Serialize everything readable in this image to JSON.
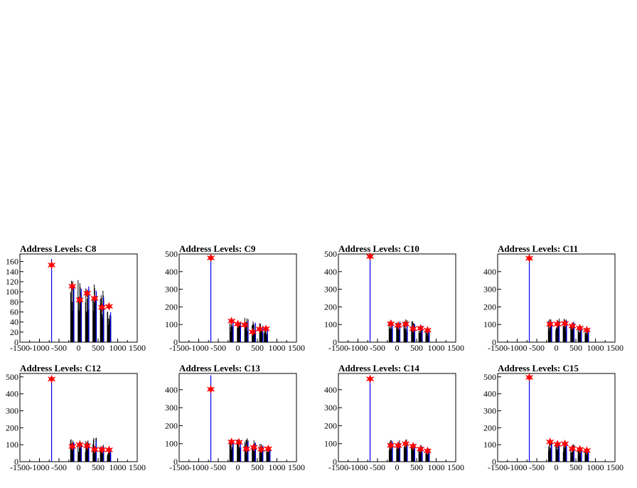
{
  "chart_data": [
    {
      "type": "histogram",
      "title": "Address Levels: C8",
      "xlim": [
        -1500,
        1500
      ],
      "ylim": [
        0,
        175
      ],
      "xticks": [
        -1500,
        -1000,
        -500,
        0,
        500,
        1000,
        1500
      ],
      "yticks": [
        0,
        20,
        40,
        60,
        80,
        100,
        120,
        140,
        160
      ],
      "main_spike": {
        "x": -690,
        "height": 165
      },
      "groups": [
        {
          "x": -160,
          "height": 130
        },
        {
          "x": 30,
          "height": 125
        },
        {
          "x": 220,
          "height": 130
        },
        {
          "x": 410,
          "height": 120
        },
        {
          "x": 600,
          "height": 105
        },
        {
          "x": 780,
          "height": 70
        }
      ],
      "markers": [
        {
          "x": -690,
          "y": 153
        },
        {
          "x": -160,
          "y": 111
        },
        {
          "x": 30,
          "y": 84
        },
        {
          "x": 220,
          "y": 97
        },
        {
          "x": 410,
          "y": 87
        },
        {
          "x": 600,
          "y": 69
        },
        {
          "x": 780,
          "y": 71
        }
      ]
    },
    {
      "type": "histogram",
      "title": "Address Levels: C9",
      "xlim": [
        -1500,
        1500
      ],
      "ylim": [
        0,
        500
      ],
      "xticks": [
        -1500,
        -1000,
        -500,
        0,
        500,
        1000,
        1500
      ],
      "yticks": [
        0,
        100,
        200,
        300,
        400,
        500
      ],
      "main_spike": {
        "x": -690,
        "height": 485
      },
      "groups": [
        {
          "x": -160,
          "height": 130
        },
        {
          "x": 30,
          "height": 130
        },
        {
          "x": 220,
          "height": 140
        },
        {
          "x": 410,
          "height": 130
        },
        {
          "x": 600,
          "height": 110
        },
        {
          "x": 720,
          "height": 85
        }
      ],
      "markers": [
        {
          "x": -690,
          "y": 478
        },
        {
          "x": -160,
          "y": 120
        },
        {
          "x": 0,
          "y": 103
        },
        {
          "x": 180,
          "y": 98
        },
        {
          "x": 380,
          "y": 58
        },
        {
          "x": 560,
          "y": 74
        },
        {
          "x": 720,
          "y": 76
        }
      ]
    },
    {
      "type": "histogram",
      "title": "Address Levels: C10",
      "xlim": [
        -1500,
        1500
      ],
      "ylim": [
        0,
        500
      ],
      "xticks": [
        -1500,
        -1000,
        -500,
        0,
        500,
        1000,
        1500
      ],
      "yticks": [
        0,
        100,
        200,
        300,
        400,
        500
      ],
      "main_spike": {
        "x": -690,
        "height": 495
      },
      "groups": [
        {
          "x": -160,
          "height": 135
        },
        {
          "x": 30,
          "height": 130
        },
        {
          "x": 220,
          "height": 130
        },
        {
          "x": 410,
          "height": 120
        },
        {
          "x": 600,
          "height": 110
        },
        {
          "x": 780,
          "height": 75
        }
      ],
      "markers": [
        {
          "x": -690,
          "y": 486
        },
        {
          "x": -160,
          "y": 105
        },
        {
          "x": 30,
          "y": 95
        },
        {
          "x": 220,
          "y": 103
        },
        {
          "x": 410,
          "y": 76
        },
        {
          "x": 600,
          "y": 79
        },
        {
          "x": 780,
          "y": 68
        }
      ]
    },
    {
      "type": "histogram",
      "title": "Address Levels: C11",
      "xlim": [
        -1500,
        1500
      ],
      "ylim": [
        0,
        500
      ],
      "xticks": [
        -1500,
        -1000,
        -500,
        0,
        500,
        1000,
        1500
      ],
      "yticks": [
        0,
        100,
        200,
        300,
        400
      ],
      "main_spike": {
        "x": -690,
        "height": 485
      },
      "groups": [
        {
          "x": -160,
          "height": 135
        },
        {
          "x": 30,
          "height": 135
        },
        {
          "x": 220,
          "height": 140
        },
        {
          "x": 410,
          "height": 130
        },
        {
          "x": 600,
          "height": 100
        },
        {
          "x": 780,
          "height": 75
        }
      ],
      "markers": [
        {
          "x": -690,
          "y": 476
        },
        {
          "x": -160,
          "y": 102
        },
        {
          "x": 30,
          "y": 103
        },
        {
          "x": 220,
          "y": 106
        },
        {
          "x": 410,
          "y": 92
        },
        {
          "x": 600,
          "y": 80
        },
        {
          "x": 780,
          "y": 69
        }
      ]
    },
    {
      "type": "histogram",
      "title": "Address Levels: C12",
      "xlim": [
        -1500,
        1500
      ],
      "ylim": [
        0,
        520
      ],
      "xticks": [
        -1500,
        -1000,
        -500,
        0,
        500,
        1000,
        1500
      ],
      "yticks": [
        0,
        100,
        200,
        300,
        400,
        500
      ],
      "main_spike": {
        "x": -690,
        "height": 500
      },
      "groups": [
        {
          "x": -160,
          "height": 135
        },
        {
          "x": 30,
          "height": 125
        },
        {
          "x": 220,
          "height": 125
        },
        {
          "x": 410,
          "height": 145
        },
        {
          "x": 600,
          "height": 100
        },
        {
          "x": 780,
          "height": 75
        }
      ],
      "markers": [
        {
          "x": -690,
          "y": 487
        },
        {
          "x": -160,
          "y": 90
        },
        {
          "x": 30,
          "y": 100
        },
        {
          "x": 220,
          "y": 94
        },
        {
          "x": 410,
          "y": 72
        },
        {
          "x": 600,
          "y": 71
        },
        {
          "x": 780,
          "y": 70
        }
      ]
    },
    {
      "type": "histogram",
      "title": "Address Levels: C13",
      "xlim": [
        -1500,
        1500
      ],
      "ylim": [
        0,
        490
      ],
      "xticks": [
        -1500,
        -1000,
        -500,
        0,
        500,
        1000,
        1500
      ],
      "yticks": [
        0,
        100,
        200,
        300,
        400
      ],
      "main_spike": {
        "x": -690,
        "height": 480
      },
      "groups": [
        {
          "x": -160,
          "height": 120
        },
        {
          "x": 30,
          "height": 130
        },
        {
          "x": 220,
          "height": 130
        },
        {
          "x": 410,
          "height": 125
        },
        {
          "x": 600,
          "height": 105
        },
        {
          "x": 780,
          "height": 80
        }
      ],
      "markers": [
        {
          "x": -690,
          "y": 402
        },
        {
          "x": -160,
          "y": 110
        },
        {
          "x": 30,
          "y": 108
        },
        {
          "x": 220,
          "y": 71
        },
        {
          "x": 410,
          "y": 80
        },
        {
          "x": 600,
          "y": 69
        },
        {
          "x": 780,
          "y": 72
        }
      ]
    },
    {
      "type": "histogram",
      "title": "Address Levels: C14",
      "xlim": [
        -1500,
        1500
      ],
      "ylim": [
        0,
        490
      ],
      "xticks": [
        -1500,
        -1000,
        -500,
        0,
        500,
        1000,
        1500
      ],
      "yticks": [
        0,
        100,
        200,
        300,
        400
      ],
      "main_spike": {
        "x": -690,
        "height": 465
      },
      "groups": [
        {
          "x": -160,
          "height": 130
        },
        {
          "x": 30,
          "height": 120
        },
        {
          "x": 220,
          "height": 125
        },
        {
          "x": 410,
          "height": 115
        },
        {
          "x": 600,
          "height": 100
        },
        {
          "x": 780,
          "height": 75
        }
      ],
      "markers": [
        {
          "x": -690,
          "y": 460
        },
        {
          "x": -160,
          "y": 91
        },
        {
          "x": 30,
          "y": 90
        },
        {
          "x": 220,
          "y": 100
        },
        {
          "x": 410,
          "y": 87
        },
        {
          "x": 600,
          "y": 70
        },
        {
          "x": 780,
          "y": 60
        }
      ]
    },
    {
      "type": "histogram",
      "title": "Address Levels: C15",
      "xlim": [
        -1500,
        1500
      ],
      "ylim": [
        0,
        520
      ],
      "xticks": [
        -1500,
        -1000,
        -500,
        0,
        500,
        1000,
        1500
      ],
      "yticks": [
        0,
        100,
        200,
        300,
        400,
        500
      ],
      "main_spike": {
        "x": -690,
        "height": 500
      },
      "groups": [
        {
          "x": -160,
          "height": 120
        },
        {
          "x": 30,
          "height": 120
        },
        {
          "x": 220,
          "height": 115
        },
        {
          "x": 410,
          "height": 105
        },
        {
          "x": 600,
          "height": 90
        },
        {
          "x": 780,
          "height": 75
        }
      ],
      "markers": [
        {
          "x": -690,
          "y": 497
        },
        {
          "x": -160,
          "y": 117
        },
        {
          "x": 30,
          "y": 103
        },
        {
          "x": 220,
          "y": 106
        },
        {
          "x": 410,
          "y": 77
        },
        {
          "x": 600,
          "y": 73
        },
        {
          "x": 780,
          "y": 66
        }
      ]
    }
  ],
  "colors": {
    "histogram_line": "#000000",
    "spike_blue": "#0000ff",
    "marker": "#ff0000",
    "frame": "#000000"
  }
}
